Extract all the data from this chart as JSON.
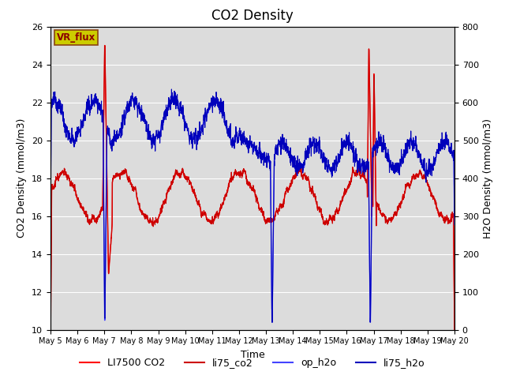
{
  "title": "CO2 Density",
  "xlabel": "Time",
  "ylabel_left": "CO2 Density (mmol/m3)",
  "ylabel_right": "H2O Density (mmol/m3)",
  "ylim_left": [
    10,
    26
  ],
  "ylim_right": [
    0,
    800
  ],
  "yticks_left": [
    10,
    12,
    14,
    16,
    18,
    20,
    22,
    24,
    26
  ],
  "yticks_right": [
    0,
    100,
    200,
    300,
    400,
    500,
    600,
    700,
    800
  ],
  "xtick_labels": [
    "May 5",
    "May 6",
    "May 7",
    "May 8",
    "May 9",
    "May 10",
    "May 11",
    "May 12",
    "May 13",
    "May 14",
    "May 15",
    "May 16",
    "May 17",
    "May 18",
    "May 19",
    "May 20"
  ],
  "legend_entries": [
    "LI7500 CO2",
    "li75_co2",
    "op_h2o",
    "li75_h2o"
  ],
  "co2_color1": "#ff0000",
  "co2_color2": "#cc0000",
  "h2o_color1": "#4444ff",
  "h2o_color2": "#0000bb",
  "vr_flux_box_facecolor": "#cccc00",
  "vr_flux_box_edgecolor": "#8B4513",
  "vr_flux_text": "VR_flux",
  "vr_flux_text_color": "#8B0000",
  "background_color": "#dcdcdc",
  "grid_color": "#ffffff",
  "title_fontsize": 12,
  "label_fontsize": 9,
  "tick_fontsize": 8,
  "legend_fontsize": 9
}
